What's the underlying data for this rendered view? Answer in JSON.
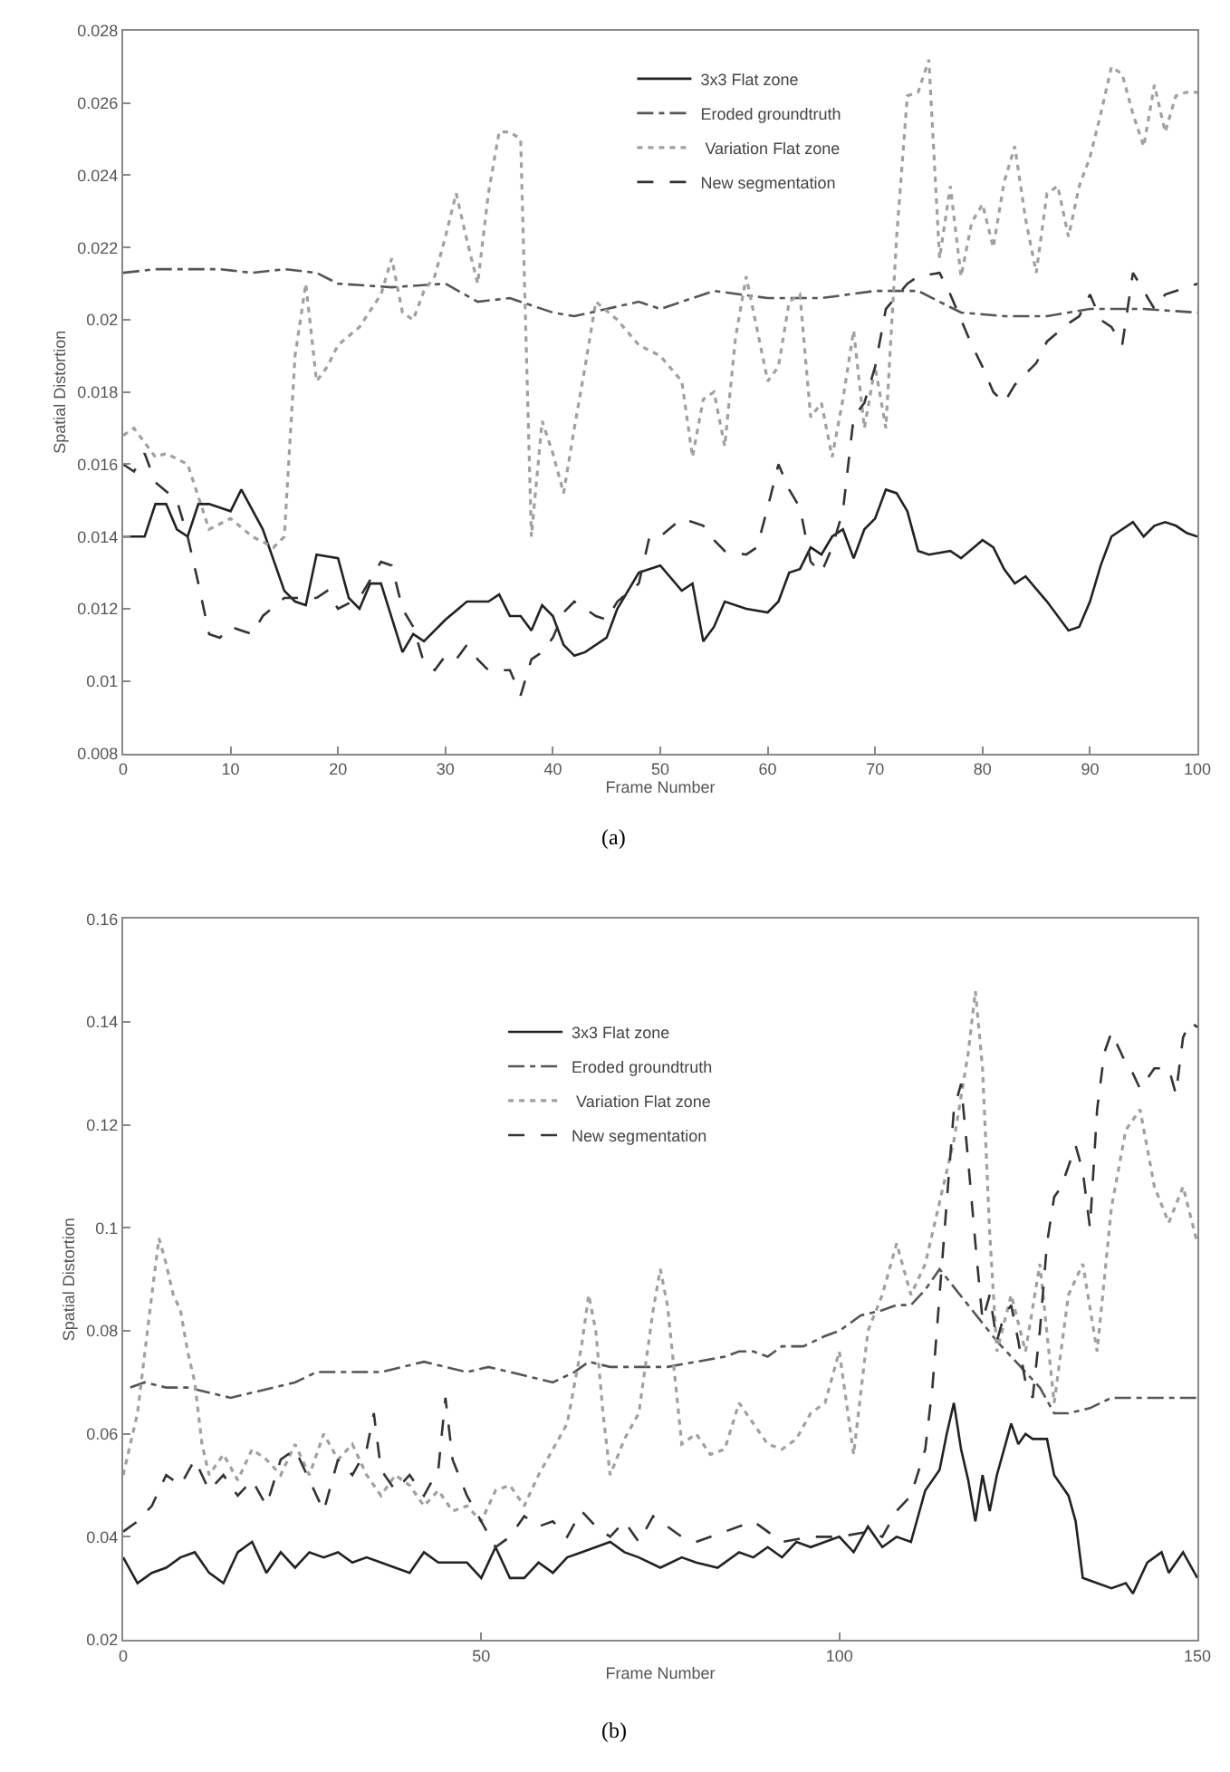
{
  "chart_data": [
    {
      "type": "line",
      "xlabel": "Frame Number",
      "ylabel": "Spatial Distortion",
      "xlim": [
        0,
        100
      ],
      "ylim": [
        0.008,
        0.028
      ],
      "xticks": [
        0,
        10,
        20,
        30,
        40,
        50,
        60,
        70,
        80,
        90,
        100
      ],
      "yticks": [
        0.008,
        0.01,
        0.012,
        0.014,
        0.016,
        0.018,
        0.02,
        0.022,
        0.024,
        0.026,
        0.028
      ],
      "legend": "top",
      "annotations": [
        "(a)"
      ],
      "series": [
        {
          "name": "3x3 Flat zone",
          "color": "#222222",
          "line_style": "solid",
          "x": [
            0,
            2,
            3,
            4,
            5,
            6,
            7,
            8,
            10,
            11,
            13,
            15,
            16,
            17,
            18,
            20,
            21,
            22,
            23,
            24,
            26,
            27,
            28,
            30,
            32,
            34,
            35,
            36,
            37,
            38,
            39,
            40,
            41,
            42,
            43,
            45,
            46,
            48,
            50,
            52,
            53,
            54,
            55,
            56,
            58,
            60,
            61,
            62,
            63,
            64,
            65,
            66,
            67,
            68,
            69,
            70,
            71,
            72,
            73,
            74,
            75,
            77,
            78,
            80,
            81,
            82,
            83,
            84,
            86,
            88,
            89,
            90,
            91,
            92,
            93,
            94,
            95,
            96,
            97,
            98,
            99,
            100
          ],
          "values": [
            0.014,
            0.014,
            0.0149,
            0.0149,
            0.0142,
            0.014,
            0.0149,
            0.0149,
            0.0147,
            0.0153,
            0.0142,
            0.0125,
            0.0122,
            0.0121,
            0.0135,
            0.0134,
            0.0123,
            0.012,
            0.0127,
            0.0127,
            0.0108,
            0.0113,
            0.0111,
            0.0117,
            0.0122,
            0.0122,
            0.0124,
            0.0118,
            0.0118,
            0.0114,
            0.0121,
            0.0118,
            0.011,
            0.0107,
            0.0108,
            0.0112,
            0.012,
            0.013,
            0.0132,
            0.0125,
            0.0127,
            0.0111,
            0.0115,
            0.0122,
            0.012,
            0.0119,
            0.0122,
            0.013,
            0.0131,
            0.0137,
            0.0135,
            0.014,
            0.0142,
            0.0134,
            0.0142,
            0.0145,
            0.0153,
            0.0152,
            0.0147,
            0.0136,
            0.0135,
            0.0136,
            0.0134,
            0.0139,
            0.0137,
            0.0131,
            0.0127,
            0.0129,
            0.0122,
            0.0114,
            0.0115,
            0.0122,
            0.0132,
            0.014,
            0.0142,
            0.0144,
            0.014,
            0.0143,
            0.0144,
            0.0143,
            0.0141,
            0.014
          ]
        },
        {
          "name": "Eroded groundtruth",
          "color": "#555555",
          "line_style": "dashdot",
          "x": [
            0,
            3,
            6,
            9,
            12,
            15,
            18,
            20,
            25,
            30,
            33,
            36,
            40,
            42,
            45,
            48,
            50,
            55,
            60,
            65,
            70,
            74,
            78,
            82,
            86,
            90,
            95,
            100
          ],
          "values": [
            0.0213,
            0.0214,
            0.0214,
            0.0214,
            0.0213,
            0.0214,
            0.0213,
            0.021,
            0.0209,
            0.021,
            0.0205,
            0.0206,
            0.0202,
            0.0201,
            0.0203,
            0.0205,
            0.0203,
            0.0208,
            0.0206,
            0.0206,
            0.0208,
            0.0208,
            0.0202,
            0.0201,
            0.0201,
            0.0203,
            0.0203,
            0.0202
          ]
        },
        {
          "name": " Variation Flat zone",
          "color": "#a0a0a0",
          "line_style": "dotted",
          "x": [
            0,
            1,
            3,
            4,
            6,
            8,
            10,
            12,
            14,
            15,
            16,
            17,
            18,
            19,
            20,
            22,
            24,
            25,
            26,
            27,
            28,
            29,
            30,
            31,
            32,
            33,
            34,
            35,
            36,
            37,
            38,
            39,
            40,
            41,
            42,
            43,
            44,
            46,
            48,
            50,
            52,
            53,
            54,
            55,
            56,
            57,
            58,
            60,
            61,
            62,
            63,
            64,
            65,
            66,
            67,
            68,
            69,
            70,
            71,
            72,
            73,
            74,
            75,
            76,
            77,
            78,
            79,
            80,
            81,
            82,
            83,
            84,
            85,
            86,
            87,
            88,
            89,
            90,
            91,
            92,
            93,
            94,
            95,
            96,
            97,
            98,
            99,
            100
          ],
          "values": [
            0.0168,
            0.017,
            0.0162,
            0.0163,
            0.016,
            0.0142,
            0.0145,
            0.014,
            0.0137,
            0.014,
            0.019,
            0.021,
            0.0183,
            0.0187,
            0.0193,
            0.0198,
            0.0207,
            0.0217,
            0.0202,
            0.02,
            0.0208,
            0.0212,
            0.0223,
            0.0235,
            0.0222,
            0.021,
            0.0235,
            0.0252,
            0.0252,
            0.025,
            0.014,
            0.0172,
            0.0163,
            0.0152,
            0.017,
            0.0187,
            0.0205,
            0.02,
            0.0193,
            0.019,
            0.0183,
            0.0162,
            0.0178,
            0.018,
            0.0165,
            0.0195,
            0.0212,
            0.0183,
            0.0187,
            0.0205,
            0.0207,
            0.0173,
            0.0177,
            0.0162,
            0.0178,
            0.0197,
            0.017,
            0.0187,
            0.017,
            0.0223,
            0.0262,
            0.0263,
            0.0272,
            0.0217,
            0.0237,
            0.0212,
            0.0227,
            0.0232,
            0.022,
            0.0238,
            0.0248,
            0.0228,
            0.0213,
            0.0235,
            0.0237,
            0.0223,
            0.0237,
            0.0245,
            0.0257,
            0.027,
            0.0268,
            0.0257,
            0.0248,
            0.0265,
            0.0252,
            0.0262,
            0.0263,
            0.0263
          ]
        },
        {
          "name": "New segmentation",
          "color": "#333333",
          "line_style": "dashed",
          "x": [
            0,
            1,
            2,
            3,
            5,
            6,
            7,
            8,
            9,
            10,
            11,
            12,
            13,
            15,
            16,
            18,
            19,
            20,
            22,
            24,
            25,
            26,
            27,
            28,
            29,
            30,
            31,
            32,
            33,
            34,
            35,
            36,
            37,
            38,
            39,
            40,
            41,
            42,
            44,
            45,
            46,
            48,
            49,
            50,
            52,
            54,
            55,
            56,
            58,
            59,
            60,
            61,
            62,
            63,
            64,
            65,
            66,
            67,
            68,
            69,
            70,
            71,
            73,
            74,
            76,
            77,
            78,
            79,
            80,
            81,
            82,
            83,
            85,
            86,
            88,
            89,
            90,
            91,
            92,
            93,
            94,
            95,
            96,
            97,
            99,
            100
          ],
          "values": [
            0.016,
            0.0158,
            0.0163,
            0.0155,
            0.015,
            0.014,
            0.0127,
            0.0113,
            0.0112,
            0.0115,
            0.0114,
            0.0113,
            0.0118,
            0.0123,
            0.0123,
            0.0123,
            0.0125,
            0.012,
            0.0123,
            0.0133,
            0.0132,
            0.012,
            0.0115,
            0.0105,
            0.0103,
            0.0107,
            0.0106,
            0.011,
            0.0106,
            0.0103,
            0.0103,
            0.0103,
            0.0096,
            0.0106,
            0.0108,
            0.0112,
            0.0119,
            0.0122,
            0.0118,
            0.0117,
            0.0122,
            0.0127,
            0.014,
            0.014,
            0.0145,
            0.0143,
            0.0139,
            0.0136,
            0.0135,
            0.0137,
            0.0148,
            0.016,
            0.0153,
            0.0148,
            0.0133,
            0.013,
            0.0137,
            0.0147,
            0.0173,
            0.0177,
            0.0187,
            0.0203,
            0.021,
            0.0212,
            0.0213,
            0.0207,
            0.02,
            0.0193,
            0.0187,
            0.018,
            0.0177,
            0.0182,
            0.0188,
            0.0194,
            0.0199,
            0.0201,
            0.0207,
            0.02,
            0.0198,
            0.0193,
            0.0213,
            0.0208,
            0.0203,
            0.0207,
            0.0209,
            0.021
          ]
        }
      ]
    },
    {
      "type": "line",
      "xlabel": "Frame Number",
      "ylabel": "Spatial Distortion",
      "xlim": [
        0,
        150
      ],
      "ylim": [
        0.02,
        0.16
      ],
      "xticks": [
        0,
        50,
        100,
        150
      ],
      "yticks": [
        0.02,
        0.04,
        0.06,
        0.08,
        0.1,
        0.12,
        0.14,
        0.16
      ],
      "legend": "top",
      "annotations": [
        "(b)"
      ],
      "series": [
        {
          "name": "3x3 Flat zone",
          "color": "#222222",
          "line_style": "solid",
          "x": [
            0,
            2,
            4,
            6,
            8,
            10,
            12,
            14,
            16,
            18,
            20,
            22,
            24,
            26,
            28,
            30,
            32,
            34,
            36,
            38,
            40,
            42,
            44,
            46,
            48,
            50,
            52,
            54,
            56,
            58,
            60,
            62,
            64,
            66,
            68,
            70,
            72,
            75,
            78,
            80,
            83,
            86,
            88,
            90,
            92,
            94,
            96,
            98,
            100,
            102,
            104,
            106,
            108,
            110,
            112,
            114,
            115,
            116,
            117,
            118,
            119,
            120,
            121,
            122,
            123,
            124,
            125,
            126,
            127,
            128,
            129,
            130,
            131,
            132,
            133,
            134,
            136,
            138,
            140,
            141,
            143,
            145,
            146,
            148,
            150
          ],
          "values": [
            0.036,
            0.031,
            0.033,
            0.034,
            0.036,
            0.037,
            0.033,
            0.031,
            0.037,
            0.039,
            0.033,
            0.037,
            0.034,
            0.037,
            0.036,
            0.037,
            0.035,
            0.036,
            0.035,
            0.034,
            0.033,
            0.037,
            0.035,
            0.035,
            0.035,
            0.032,
            0.038,
            0.032,
            0.032,
            0.035,
            0.033,
            0.036,
            0.037,
            0.038,
            0.039,
            0.037,
            0.036,
            0.034,
            0.036,
            0.035,
            0.034,
            0.037,
            0.036,
            0.038,
            0.036,
            0.039,
            0.038,
            0.039,
            0.04,
            0.037,
            0.042,
            0.038,
            0.04,
            0.039,
            0.049,
            0.053,
            0.06,
            0.066,
            0.057,
            0.051,
            0.043,
            0.052,
            0.045,
            0.052,
            0.057,
            0.062,
            0.058,
            0.06,
            0.059,
            0.059,
            0.059,
            0.052,
            0.05,
            0.048,
            0.043,
            0.032,
            0.031,
            0.03,
            0.031,
            0.029,
            0.035,
            0.037,
            0.033,
            0.037,
            0.032
          ]
        },
        {
          "name": "Eroded groundtruth",
          "color": "#555555",
          "line_style": "dashdot",
          "x": [
            1,
            3,
            6,
            9,
            12,
            15,
            18,
            21,
            24,
            27,
            30,
            33,
            36,
            39,
            42,
            45,
            48,
            51,
            54,
            57,
            60,
            63,
            65,
            68,
            72,
            76,
            80,
            84,
            86,
            88,
            90,
            92,
            95,
            98,
            100,
            103,
            106,
            108,
            110,
            112,
            114,
            118,
            122,
            126,
            128,
            130,
            132,
            135,
            138,
            141,
            144,
            147,
            150
          ],
          "values": [
            0.069,
            0.07,
            0.069,
            0.069,
            0.068,
            0.067,
            0.068,
            0.069,
            0.07,
            0.072,
            0.072,
            0.072,
            0.072,
            0.073,
            0.074,
            0.073,
            0.072,
            0.073,
            0.072,
            0.071,
            0.07,
            0.072,
            0.074,
            0.073,
            0.073,
            0.073,
            0.074,
            0.075,
            0.076,
            0.076,
            0.075,
            0.077,
            0.077,
            0.079,
            0.08,
            0.083,
            0.084,
            0.085,
            0.085,
            0.088,
            0.092,
            0.085,
            0.078,
            0.072,
            0.069,
            0.064,
            0.064,
            0.065,
            0.067,
            0.067,
            0.067,
            0.067,
            0.067
          ]
        },
        {
          "name": " Variation Flat zone",
          "color": "#a0a0a0",
          "line_style": "dotted",
          "x": [
            0,
            2,
            4,
            5,
            6,
            7,
            8,
            9,
            10,
            11,
            12,
            14,
            16,
            18,
            20,
            22,
            24,
            26,
            28,
            30,
            32,
            34,
            36,
            38,
            40,
            42,
            44,
            46,
            48,
            50,
            52,
            54,
            56,
            58,
            60,
            62,
            64,
            65,
            66,
            67,
            68,
            70,
            72,
            74,
            75,
            76,
            78,
            80,
            82,
            84,
            86,
            88,
            90,
            92,
            94,
            96,
            98,
            100,
            101,
            102,
            104,
            106,
            108,
            110,
            112,
            114,
            116,
            118,
            119,
            120,
            121,
            122,
            124,
            126,
            128,
            130,
            132,
            134,
            136,
            138,
            140,
            142,
            144,
            146,
            148,
            150
          ],
          "values": [
            0.052,
            0.064,
            0.087,
            0.098,
            0.093,
            0.087,
            0.084,
            0.076,
            0.07,
            0.058,
            0.052,
            0.056,
            0.051,
            0.057,
            0.055,
            0.052,
            0.058,
            0.052,
            0.06,
            0.055,
            0.058,
            0.052,
            0.048,
            0.052,
            0.05,
            0.046,
            0.049,
            0.045,
            0.046,
            0.043,
            0.049,
            0.05,
            0.046,
            0.052,
            0.057,
            0.062,
            0.077,
            0.087,
            0.08,
            0.064,
            0.052,
            0.059,
            0.064,
            0.084,
            0.092,
            0.085,
            0.058,
            0.06,
            0.056,
            0.057,
            0.066,
            0.062,
            0.058,
            0.057,
            0.059,
            0.064,
            0.066,
            0.076,
            0.066,
            0.056,
            0.08,
            0.087,
            0.097,
            0.087,
            0.093,
            0.105,
            0.117,
            0.134,
            0.146,
            0.131,
            0.099,
            0.076,
            0.087,
            0.076,
            0.093,
            0.066,
            0.087,
            0.093,
            0.076,
            0.104,
            0.119,
            0.123,
            0.108,
            0.101,
            0.108,
            0.097
          ]
        },
        {
          "name": "New segmentation",
          "color": "#333333",
          "line_style": "dashed",
          "x": [
            0,
            2,
            4,
            6,
            8,
            10,
            12,
            14,
            16,
            18,
            20,
            22,
            24,
            26,
            28,
            30,
            32,
            34,
            35,
            36,
            38,
            40,
            42,
            44,
            45,
            46,
            48,
            50,
            52,
            54,
            56,
            58,
            60,
            62,
            64,
            66,
            68,
            70,
            72,
            74,
            76,
            78,
            80,
            84,
            88,
            92,
            96,
            100,
            104,
            106,
            108,
            110,
            112,
            113,
            114,
            115,
            116,
            117,
            118,
            119,
            120,
            121,
            122,
            123,
            124,
            125,
            126,
            127,
            128,
            129,
            130,
            131,
            132,
            133,
            134,
            135,
            136,
            137,
            138,
            139,
            140,
            141,
            142,
            144,
            146,
            147,
            148,
            149,
            150
          ],
          "values": [
            0.041,
            0.043,
            0.046,
            0.052,
            0.05,
            0.055,
            0.049,
            0.052,
            0.048,
            0.051,
            0.046,
            0.055,
            0.057,
            0.051,
            0.045,
            0.055,
            0.052,
            0.057,
            0.064,
            0.053,
            0.049,
            0.052,
            0.048,
            0.053,
            0.067,
            0.055,
            0.048,
            0.043,
            0.038,
            0.04,
            0.044,
            0.042,
            0.043,
            0.04,
            0.045,
            0.042,
            0.04,
            0.043,
            0.039,
            0.044,
            0.042,
            0.04,
            0.039,
            0.041,
            0.043,
            0.039,
            0.04,
            0.04,
            0.041,
            0.04,
            0.045,
            0.048,
            0.057,
            0.069,
            0.087,
            0.105,
            0.123,
            0.128,
            0.113,
            0.097,
            0.082,
            0.087,
            0.078,
            0.083,
            0.085,
            0.078,
            0.07,
            0.067,
            0.08,
            0.097,
            0.106,
            0.108,
            0.112,
            0.116,
            0.111,
            0.1,
            0.123,
            0.134,
            0.138,
            0.135,
            0.132,
            0.13,
            0.127,
            0.131,
            0.131,
            0.126,
            0.137,
            0.14,
            0.139
          ]
        }
      ]
    }
  ]
}
